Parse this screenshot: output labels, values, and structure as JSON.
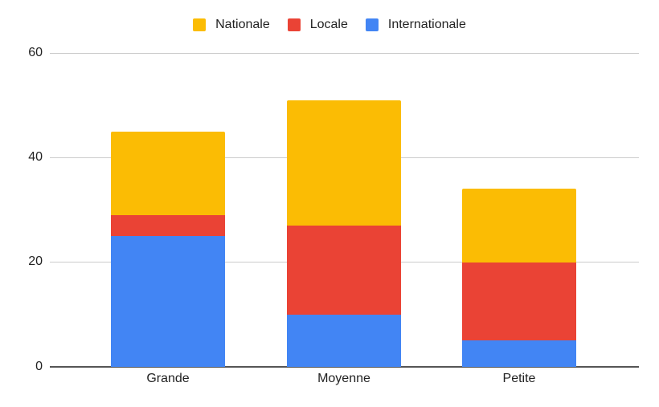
{
  "chart_data": {
    "type": "bar",
    "stacked": true,
    "title": "",
    "xlabel": "",
    "ylabel": "",
    "categories": [
      "Grande",
      "Moyenne",
      "Petite"
    ],
    "series": [
      {
        "name": "Internationale",
        "color": "#4285F4",
        "values": [
          25,
          10,
          5
        ]
      },
      {
        "name": "Locale",
        "color": "#EA4335",
        "values": [
          4,
          17,
          15
        ]
      },
      {
        "name": "Nationale",
        "color": "#FBBC04",
        "values": [
          16,
          24,
          14
        ]
      }
    ],
    "totals": [
      45,
      51,
      34
    ],
    "ylim": [
      0,
      60
    ],
    "yticks": [
      0,
      20,
      40,
      60
    ],
    "grid": true,
    "legend_position": "top",
    "legend_order": [
      "Nationale",
      "Locale",
      "Internationale"
    ]
  },
  "legend": {
    "items": [
      {
        "label": "Nationale",
        "color": "#FBBC04"
      },
      {
        "label": "Locale",
        "color": "#EA4335"
      },
      {
        "label": "Internationale",
        "color": "#4285F4"
      }
    ]
  },
  "axis": {
    "yticks": [
      "60",
      "40",
      "20",
      "0"
    ],
    "xticks": [
      "Grande",
      "Moyenne",
      "Petite"
    ]
  }
}
